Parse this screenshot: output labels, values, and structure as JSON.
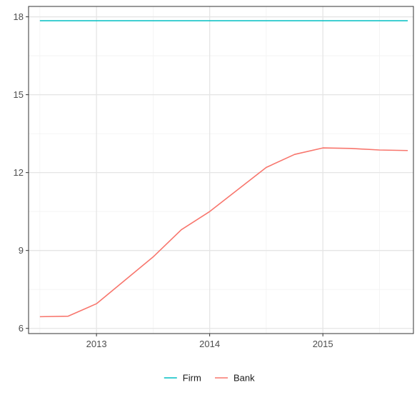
{
  "chart_data": {
    "type": "line",
    "title": "",
    "xlabel": "",
    "ylabel": "",
    "xlim": [
      2012.4,
      2015.8
    ],
    "ylim": [
      5.8,
      18.4
    ],
    "x_ticks": [
      2013,
      2014,
      2015
    ],
    "x_tick_labels": [
      "2013",
      "2014",
      "2015"
    ],
    "y_ticks": [
      6,
      9,
      12,
      15,
      18
    ],
    "y_tick_labels": [
      "6",
      "9",
      "12",
      "15",
      "18"
    ],
    "grid": true,
    "legend_position": "bottom",
    "series": [
      {
        "name": "Firm",
        "color": "#00BFC4",
        "x": [
          2012.5,
          2015.75
        ],
        "y": [
          17.85,
          17.85
        ]
      },
      {
        "name": "Bank",
        "color": "#F8766D",
        "x": [
          2012.5,
          2012.75,
          2013.0,
          2013.25,
          2013.5,
          2013.75,
          2014.0,
          2014.25,
          2014.5,
          2014.75,
          2015.0,
          2015.25,
          2015.5,
          2015.75
        ],
        "y": [
          6.45,
          6.47,
          6.95,
          7.85,
          8.75,
          9.8,
          10.5,
          11.35,
          12.2,
          12.7,
          12.95,
          12.93,
          12.87,
          12.85
        ]
      }
    ]
  }
}
